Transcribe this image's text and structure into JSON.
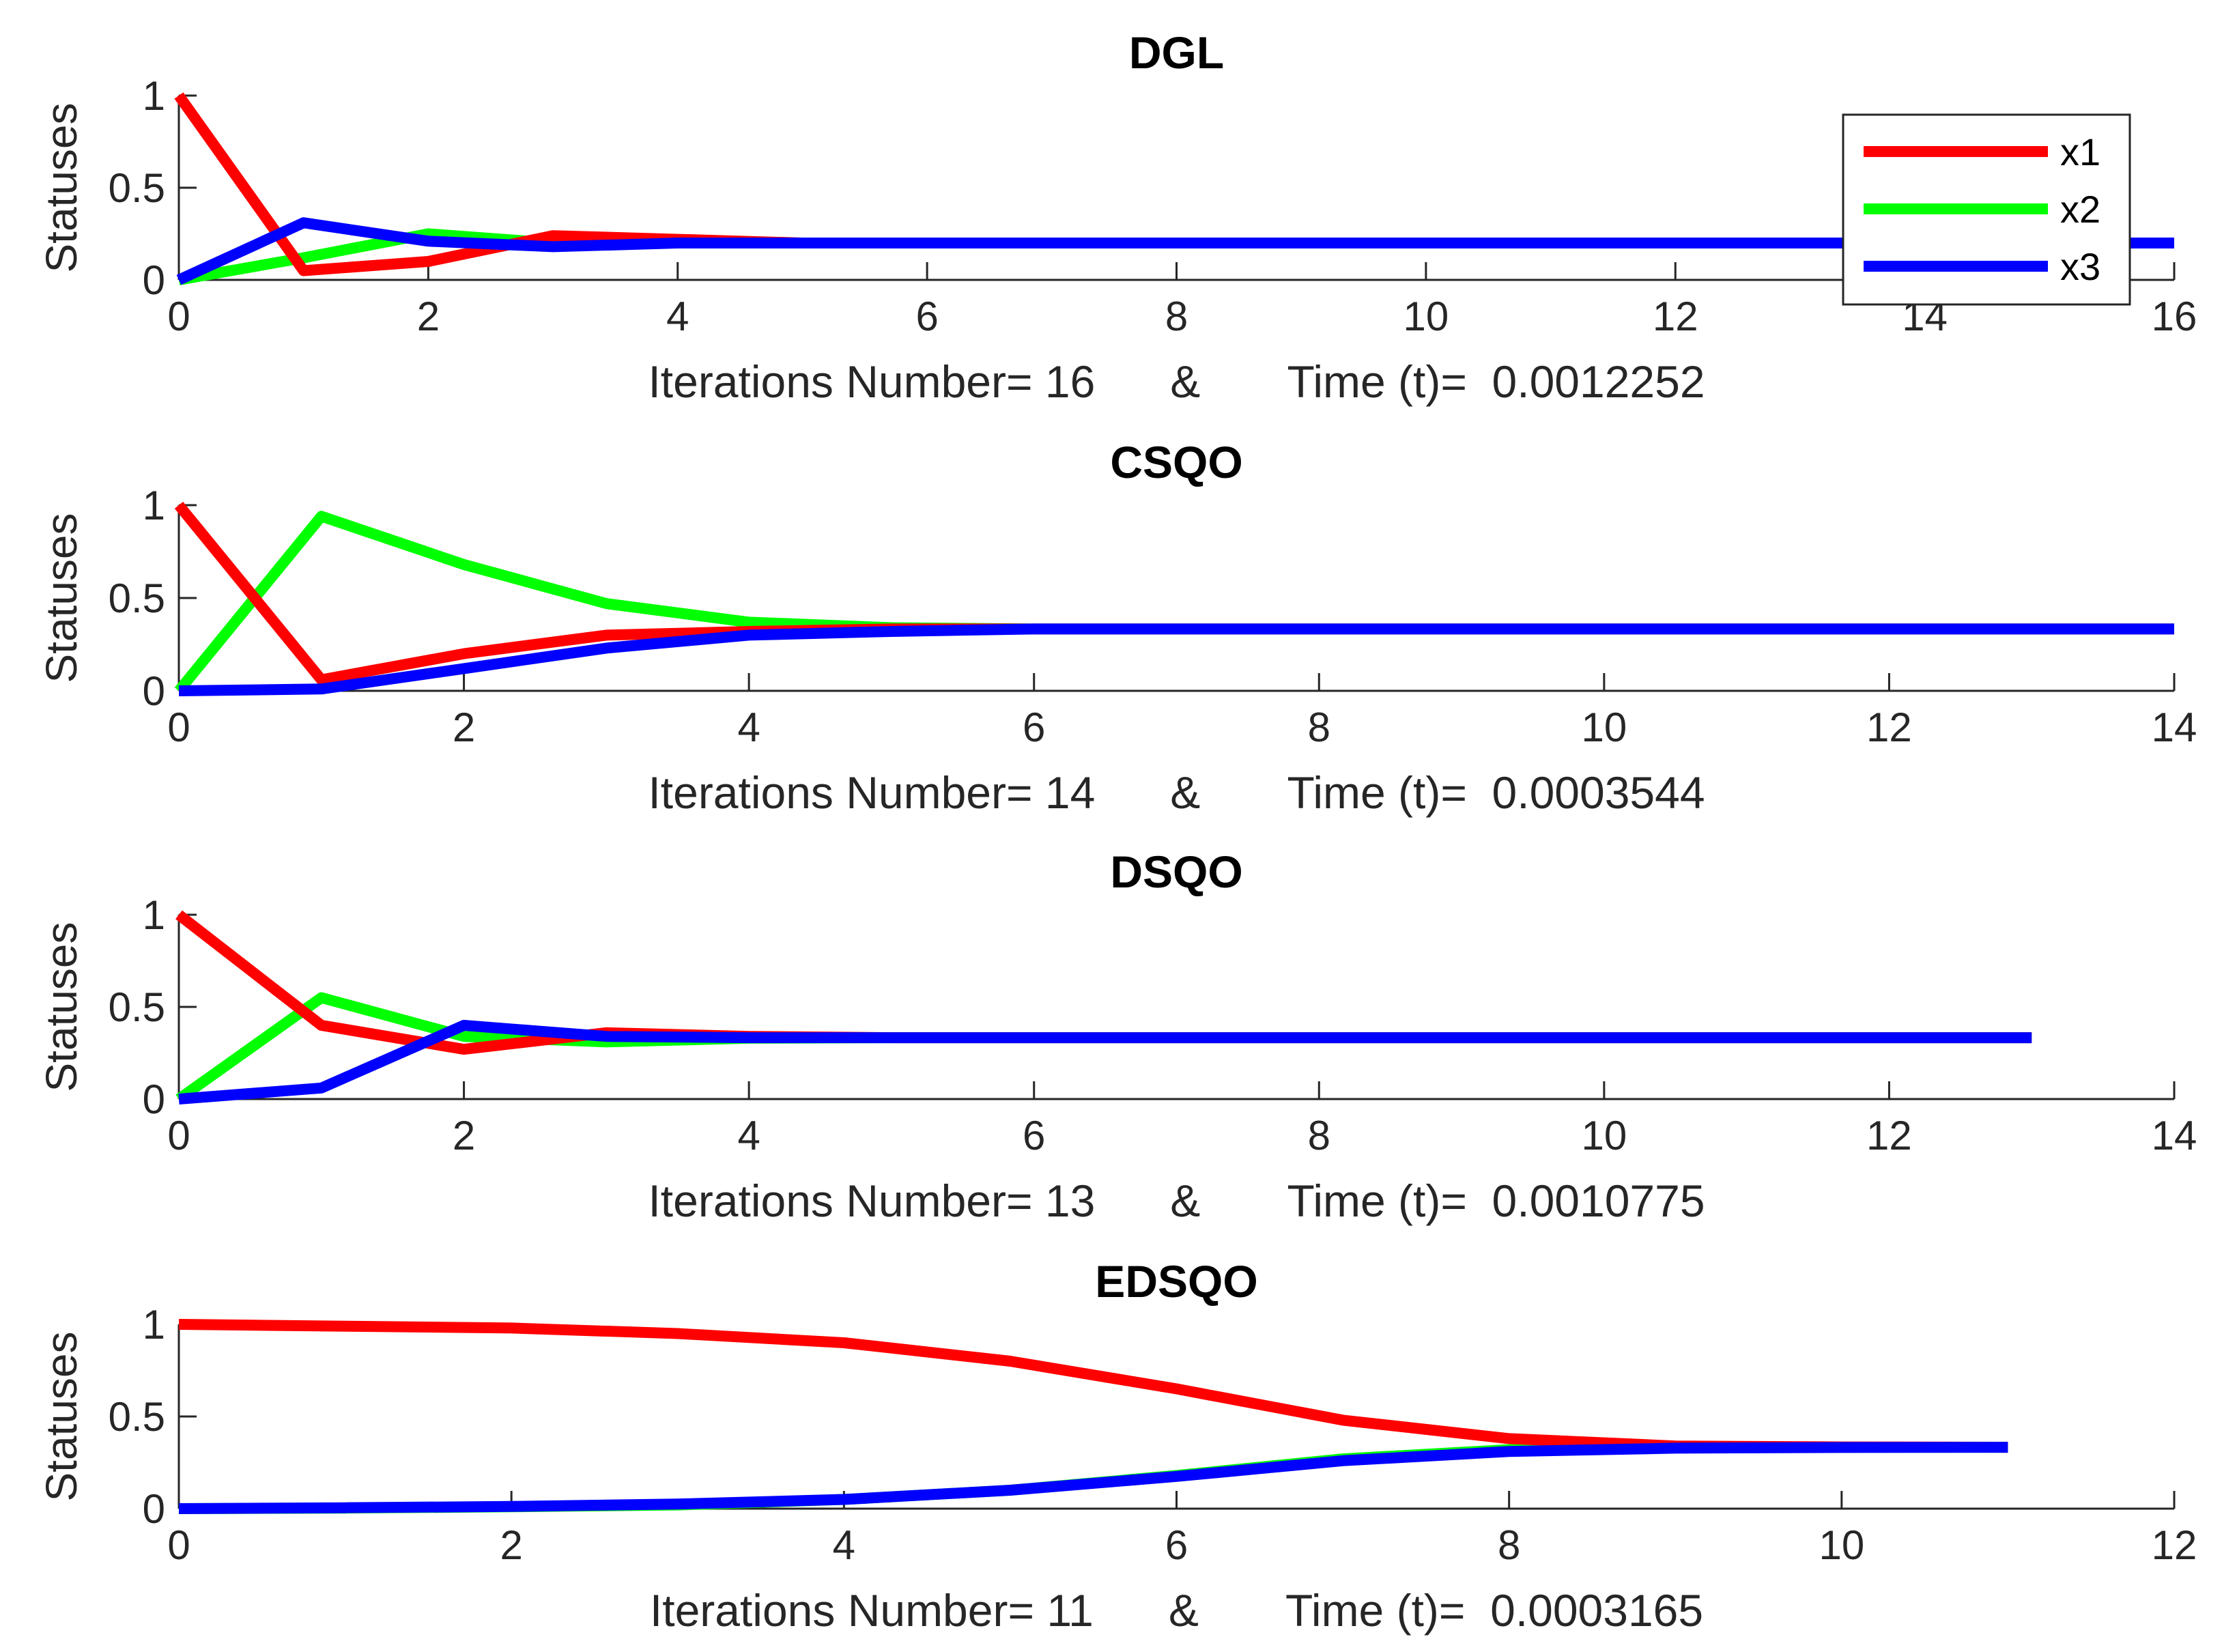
{
  "chart_data": [
    {
      "type": "line",
      "title": "DGL",
      "ylabel": "Statuses",
      "xlabel": "Iterations Number= 16      &       Time (t)=  0.0012252",
      "xlim": [
        0,
        16
      ],
      "ylim": [
        0,
        1
      ],
      "xticks": [
        0,
        2,
        4,
        6,
        8,
        10,
        12,
        14,
        16
      ],
      "yticks": [
        0,
        0.5,
        1
      ],
      "legend": {
        "position": "top-right",
        "entries": [
          "x1",
          "x2",
          "x3"
        ]
      },
      "x": [
        0,
        1,
        2,
        3,
        4,
        5,
        6,
        7,
        8,
        9,
        10,
        11,
        12,
        13,
        14,
        15,
        16
      ],
      "series": [
        {
          "name": "x1",
          "color": "#ff0000",
          "values": [
            1,
            0.05,
            0.1,
            0.24,
            0.22,
            0.2,
            0.2,
            0.2,
            0.2,
            0.2,
            0.2,
            0.2,
            0.2,
            0.2,
            0.2,
            0.2,
            0.2
          ]
        },
        {
          "name": "x2",
          "color": "#00ff00",
          "values": [
            0,
            0.12,
            0.25,
            0.2,
            0.2,
            0.2,
            0.2,
            0.2,
            0.2,
            0.2,
            0.2,
            0.2,
            0.2,
            0.2,
            0.2,
            0.2,
            0.2
          ]
        },
        {
          "name": "x3",
          "color": "#0000ff",
          "values": [
            0,
            0.31,
            0.21,
            0.18,
            0.2,
            0.2,
            0.2,
            0.2,
            0.2,
            0.2,
            0.2,
            0.2,
            0.2,
            0.2,
            0.2,
            0.2,
            0.2
          ]
        }
      ]
    },
    {
      "type": "line",
      "title": "CSQO",
      "ylabel": "Statuses",
      "xlabel": "Iterations Number= 14      &       Time (t)=  0.0003544",
      "xlim": [
        0,
        14
      ],
      "ylim": [
        0,
        1
      ],
      "xticks": [
        0,
        2,
        4,
        6,
        8,
        10,
        12,
        14
      ],
      "yticks": [
        0,
        0.5,
        1
      ],
      "x": [
        0,
        1,
        2,
        3,
        4,
        5,
        6,
        7,
        8,
        9,
        10,
        11,
        12,
        13,
        14
      ],
      "series": [
        {
          "name": "x1",
          "color": "#ff0000",
          "values": [
            1,
            0.06,
            0.2,
            0.3,
            0.32,
            0.333,
            0.333,
            0.333,
            0.333,
            0.333,
            0.333,
            0.333,
            0.333,
            0.333,
            0.333
          ]
        },
        {
          "name": "x2",
          "color": "#00ff00",
          "values": [
            0,
            0.94,
            0.68,
            0.47,
            0.37,
            0.34,
            0.333,
            0.333,
            0.333,
            0.333,
            0.333,
            0.333,
            0.333,
            0.333,
            0.333
          ]
        },
        {
          "name": "x3",
          "color": "#0000ff",
          "values": [
            0,
            0.01,
            0.12,
            0.23,
            0.3,
            0.32,
            0.333,
            0.333,
            0.333,
            0.333,
            0.333,
            0.333,
            0.333,
            0.333,
            0.333
          ]
        }
      ]
    },
    {
      "type": "line",
      "title": "DSQO",
      "ylabel": "Statuses",
      "xlabel": "Iterations Number= 13      &       Time (t)=  0.0010775",
      "xlim": [
        0,
        14
      ],
      "ylim": [
        0,
        1
      ],
      "xticks": [
        0,
        2,
        4,
        6,
        8,
        10,
        12,
        14
      ],
      "yticks": [
        0,
        0.5,
        1
      ],
      "x": [
        0,
        1,
        2,
        3,
        4,
        5,
        6,
        7,
        8,
        9,
        10,
        11,
        12,
        13
      ],
      "series": [
        {
          "name": "x1",
          "color": "#ff0000",
          "values": [
            1,
            0.4,
            0.27,
            0.36,
            0.34,
            0.333,
            0.333,
            0.333,
            0.333,
            0.333,
            0.333,
            0.333,
            0.333,
            0.333
          ]
        },
        {
          "name": "x2",
          "color": "#00ff00",
          "values": [
            0,
            0.55,
            0.34,
            0.31,
            0.33,
            0.333,
            0.333,
            0.333,
            0.333,
            0.333,
            0.333,
            0.333,
            0.333,
            0.333
          ]
        },
        {
          "name": "x3",
          "color": "#0000ff",
          "values": [
            0,
            0.06,
            0.4,
            0.34,
            0.333,
            0.333,
            0.333,
            0.333,
            0.333,
            0.333,
            0.333,
            0.333,
            0.333,
            0.333
          ]
        }
      ]
    },
    {
      "type": "line",
      "title": "EDSQO",
      "ylabel": "Statuses",
      "xlabel": "Iterations Number= 11      &       Time (t)=  0.0003165",
      "xlim": [
        0,
        12
      ],
      "ylim": [
        0,
        1
      ],
      "xticks": [
        0,
        2,
        4,
        6,
        8,
        10,
        12
      ],
      "yticks": [
        0,
        0.5,
        1
      ],
      "x": [
        0,
        1,
        2,
        3,
        4,
        5,
        6,
        7,
        8,
        9,
        10,
        11
      ],
      "series": [
        {
          "name": "x1",
          "color": "#ff0000",
          "values": [
            1,
            0.99,
            0.98,
            0.95,
            0.9,
            0.8,
            0.65,
            0.48,
            0.38,
            0.34,
            0.335,
            0.333
          ]
        },
        {
          "name": "x2",
          "color": "#00ff00",
          "values": [
            0,
            0.003,
            0.01,
            0.02,
            0.05,
            0.1,
            0.18,
            0.27,
            0.32,
            0.33,
            0.333,
            0.333
          ]
        },
        {
          "name": "x3",
          "color": "#0000ff",
          "values": [
            0,
            0.005,
            0.012,
            0.025,
            0.05,
            0.1,
            0.175,
            0.26,
            0.31,
            0.328,
            0.332,
            0.333
          ]
        }
      ]
    }
  ]
}
